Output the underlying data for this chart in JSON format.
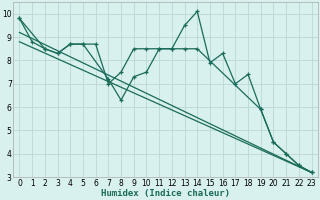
{
  "xlabel": "Humidex (Indice chaleur)",
  "bg_color": "#d8f0ee",
  "grid_color": "#b8d8d4",
  "line_color": "#1a6b5a",
  "xlim": [
    -0.5,
    23.5
  ],
  "ylim": [
    3,
    10.5
  ],
  "xticks": [
    0,
    1,
    2,
    3,
    4,
    5,
    6,
    7,
    8,
    9,
    10,
    11,
    12,
    13,
    14,
    15,
    16,
    17,
    18,
    19,
    20,
    21,
    22,
    23
  ],
  "yticks": [
    3,
    4,
    5,
    6,
    7,
    8,
    9,
    10
  ],
  "series": [
    {
      "x": [
        0,
        1,
        2,
        3,
        4,
        5,
        6,
        7,
        8,
        9,
        10,
        11,
        12,
        13,
        14,
        15,
        16,
        17,
        18,
        19,
        20,
        21,
        22,
        23
      ],
      "y": [
        9.8,
        8.8,
        8.5,
        8.3,
        8.7,
        8.7,
        8.7,
        7.0,
        7.5,
        8.5,
        8.5,
        8.5,
        8.5,
        9.5,
        10.1,
        7.9,
        8.3,
        7.0,
        7.4,
        5.9,
        4.5,
        4.0,
        3.5,
        3.2
      ],
      "marker": true
    },
    {
      "x": [
        0,
        2,
        3,
        4,
        5,
        7,
        8,
        9,
        10,
        11,
        12,
        13,
        14,
        19,
        20,
        21,
        22,
        23
      ],
      "y": [
        9.8,
        8.5,
        8.3,
        8.7,
        8.7,
        7.2,
        6.3,
        7.3,
        7.5,
        8.5,
        8.5,
        8.5,
        8.5,
        5.9,
        4.5,
        4.0,
        3.5,
        3.2
      ],
      "marker": true
    },
    {
      "x": [
        0,
        23
      ],
      "y": [
        9.2,
        3.2
      ],
      "marker": false
    },
    {
      "x": [
        0,
        23
      ],
      "y": [
        8.8,
        3.2
      ],
      "marker": false
    }
  ]
}
